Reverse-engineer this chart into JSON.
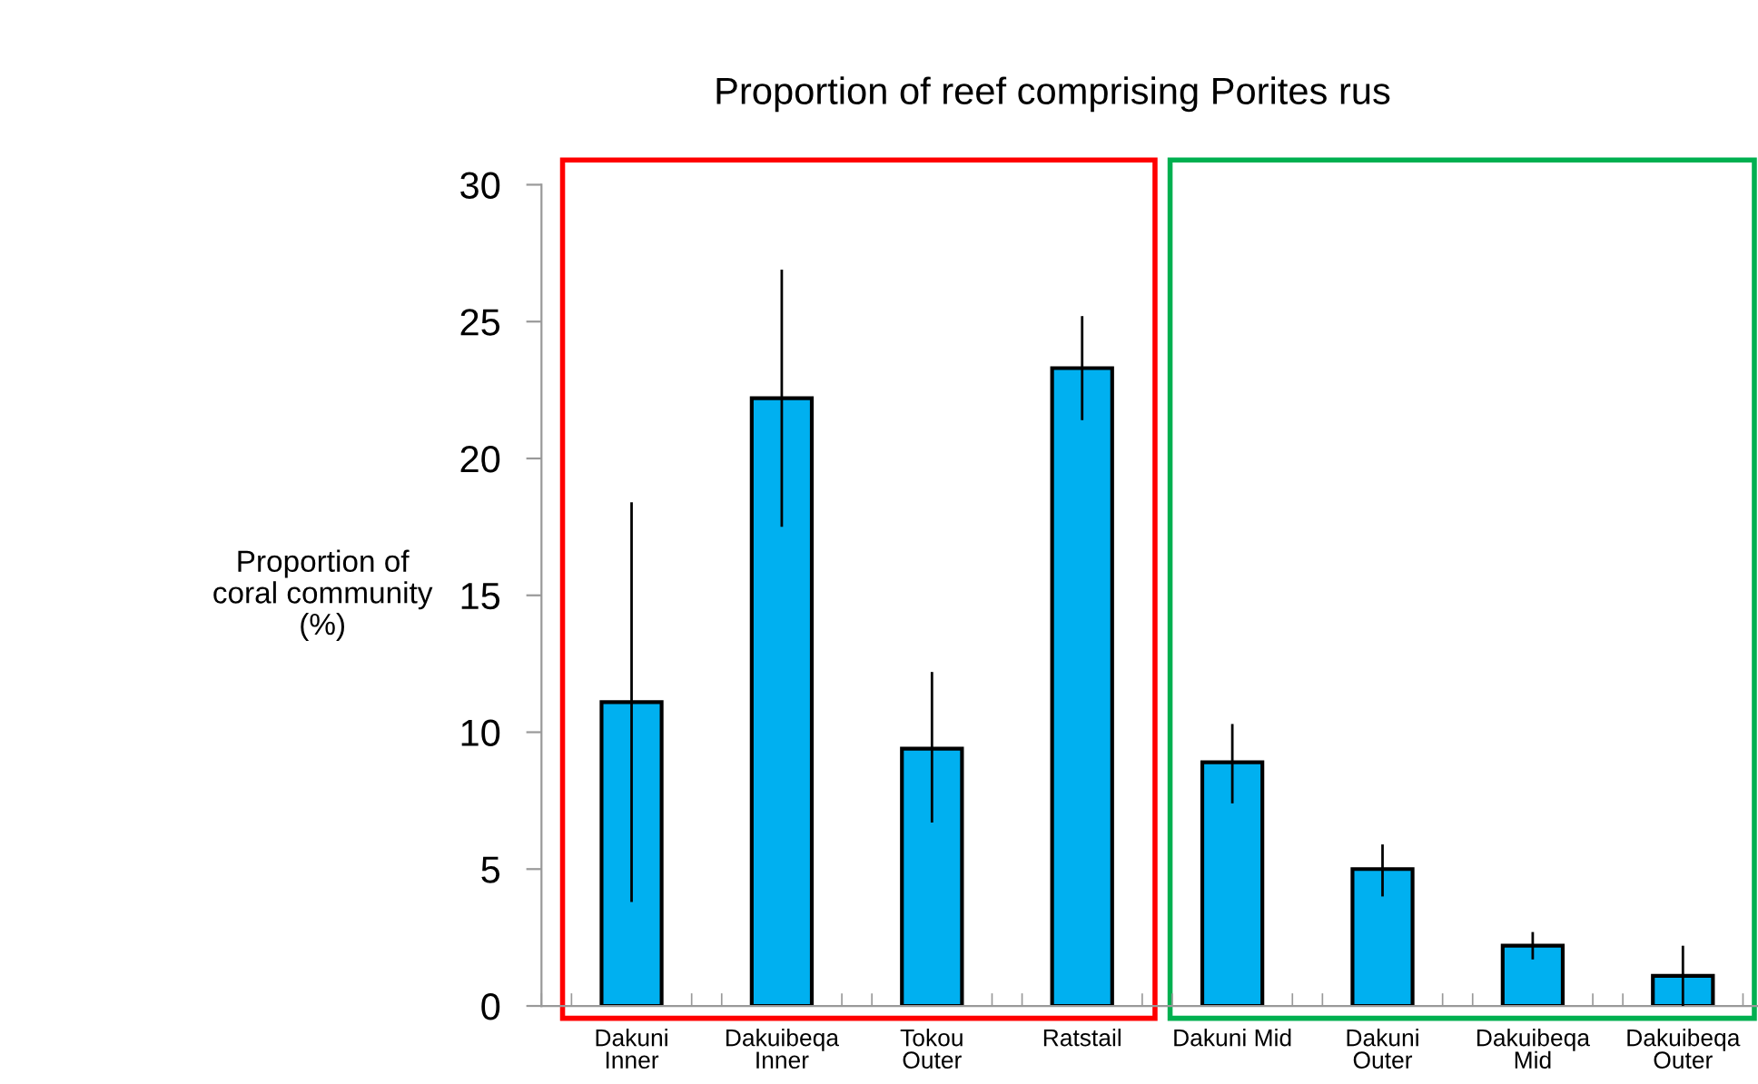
{
  "chart_data": {
    "type": "bar",
    "title": "Proportion of reef comprising Porites rus",
    "ylabel": "Proportion of\ncoral community\n(%)",
    "categories": [
      "Dakuni\nInner",
      "Dakuibeqa\nInner",
      "Tokou\nOuter",
      "Ratstail",
      "Dakuni Mid",
      "Dakuni\nOuter",
      "Dakuibeqa\nMid",
      "Dakuibeqa\nOuter"
    ],
    "values": [
      11.1,
      22.2,
      9.4,
      23.3,
      8.9,
      5.0,
      2.2,
      1.1
    ],
    "errors": [
      [
        3.8,
        18.4
      ],
      [
        17.5,
        26.9
      ],
      [
        6.7,
        12.2
      ],
      [
        21.4,
        25.2
      ],
      [
        7.4,
        10.3
      ],
      [
        4.0,
        5.9
      ],
      [
        1.7,
        2.7
      ],
      [
        0.0,
        2.2
      ]
    ],
    "color": "#00b0f0",
    "ylim": [
      0,
      30
    ],
    "yticks": [
      0,
      5,
      10,
      15,
      20,
      25,
      30
    ],
    "grid": false,
    "legend": false
  }
}
